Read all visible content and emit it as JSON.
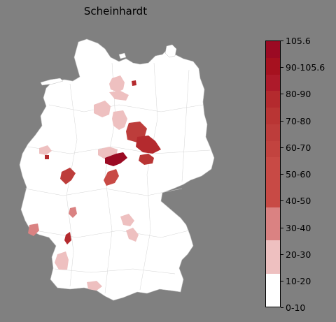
{
  "map": {
    "title": "Scheinhardt",
    "land_color": "#ffffff",
    "background_color": "#808080",
    "border_color": "#c8c8c8"
  },
  "legend": {
    "labels": [
      "105.6",
      "90-105.6",
      "80-90",
      "70-80",
      "60-70",
      "50-60",
      "40-50",
      "30-40",
      "20-30",
      "10-20",
      "0-10"
    ],
    "swatch_colors_top_to_bottom": [
      "#9b0a23",
      "#a6111f",
      "#ad1a2a",
      "#b42a2e",
      "#b93534",
      "#bd3d3b",
      "#c2433f",
      "#c84a45",
      "#da8282",
      "#eec0c0",
      "#ffffff"
    ]
  },
  "highlighted_regions": [
    {
      "area": "Rostock",
      "shade": "#b42a2e"
    },
    {
      "area": "Hamburg area",
      "shade": "#eec0c0"
    },
    {
      "area": "Bremen area",
      "shade": "#eec0c0"
    },
    {
      "area": "Hannover",
      "shade": "#eec0c0"
    },
    {
      "area": "Magdeburg region",
      "shade": "#bd3d3b"
    },
    {
      "area": "Halle region",
      "shade": "#b42a2e"
    },
    {
      "area": "Leipzig region",
      "shade": "#b93534"
    },
    {
      "area": "Goettingen region",
      "shade": "#eec0c0"
    },
    {
      "area": "Kassel region",
      "shade": "#9b0a23"
    },
    {
      "area": "Eisenach region",
      "shade": "#c84a45"
    },
    {
      "area": "Fulda region",
      "shade": "#da8282"
    },
    {
      "area": "Bonn region",
      "shade": "#eec0c0"
    },
    {
      "area": "Siegen region",
      "shade": "#bd3d3b"
    },
    {
      "area": "Mannheim region",
      "shade": "#da8282"
    },
    {
      "area": "Saarland region",
      "shade": "#da8282"
    },
    {
      "area": "Karlsruhe region",
      "shade": "#b42a2e"
    },
    {
      "area": "Regensburg region",
      "shade": "#eec0c0"
    },
    {
      "area": "Ingolstadt region",
      "shade": "#eec0c0"
    },
    {
      "area": "Freiburg region",
      "shade": "#eec0c0"
    },
    {
      "area": "Lake Constance region",
      "shade": "#eec0c0"
    }
  ]
}
